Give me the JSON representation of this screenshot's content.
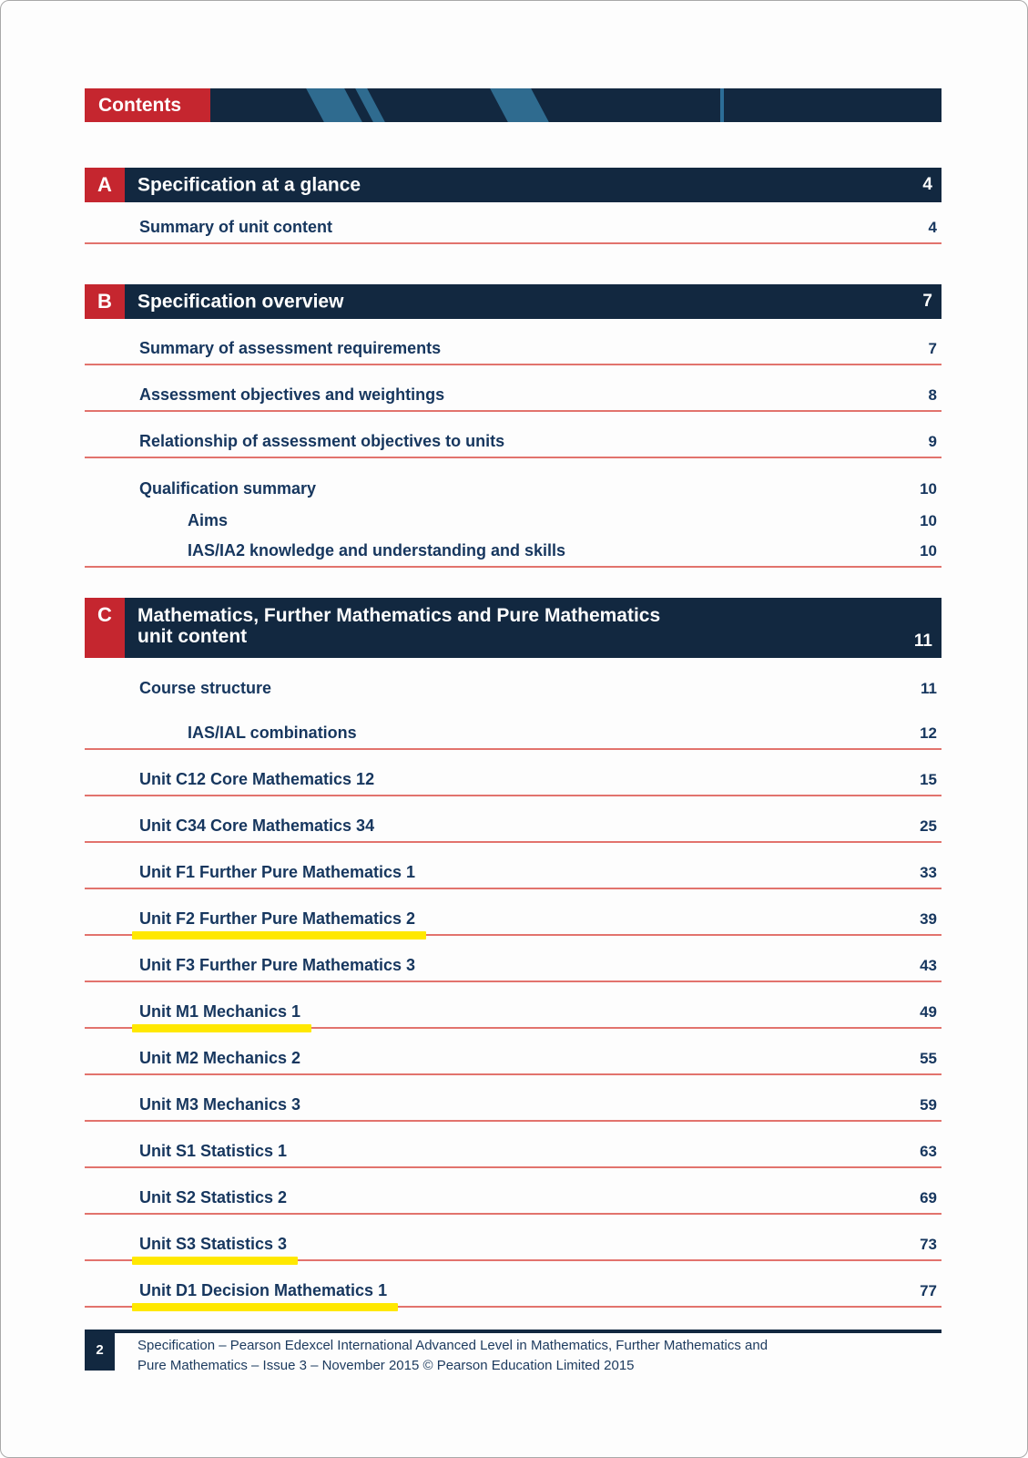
{
  "header": {
    "label": "Contents"
  },
  "sections": [
    {
      "letter": "A",
      "title": "Specification at a glance",
      "page": "4",
      "entries": [
        {
          "label": "Summary of unit content",
          "page": "4",
          "level": 1,
          "underline": true,
          "highlight": false
        }
      ]
    },
    {
      "letter": "B",
      "title": "Specification overview",
      "page": "7",
      "entries": [
        {
          "label": "Summary of assessment requirements",
          "page": "7",
          "level": 1,
          "underline": true,
          "highlight": false
        },
        {
          "label": "Assessment objectives and weightings",
          "page": "8",
          "level": 1,
          "underline": true,
          "highlight": false
        },
        {
          "label": "Relationship of assessment objectives to units",
          "page": "9",
          "level": 1,
          "underline": true,
          "highlight": false
        },
        {
          "label": "Qualification summary",
          "page": "10",
          "level": 1,
          "underline": false,
          "highlight": false
        },
        {
          "label": "Aims",
          "page": "10",
          "level": 2,
          "underline": false,
          "highlight": false
        },
        {
          "label": "IAS/IA2 knowledge and understanding and skills",
          "page": "10",
          "level": 2,
          "underline": true,
          "highlight": false
        }
      ]
    },
    {
      "letter": "C",
      "title": "Mathematics, Further Mathematics and Pure Mathematics",
      "title_line2": "unit content",
      "page": "11",
      "entries": [
        {
          "label": "Course structure",
          "page": "11",
          "level": 1,
          "underline": false,
          "highlight": false
        },
        {
          "label": "IAS/IAL combinations",
          "page": "12",
          "level": 2,
          "underline": true,
          "highlight": false
        },
        {
          "label": "Unit C12 Core Mathematics 12",
          "page": "15",
          "level": 1,
          "underline": true,
          "highlight": false
        },
        {
          "label": "Unit C34 Core Mathematics 34",
          "page": "25",
          "level": 1,
          "underline": true,
          "highlight": false
        },
        {
          "label": "Unit F1 Further Pure Mathematics 1",
          "page": "33",
          "level": 1,
          "underline": true,
          "highlight": false
        },
        {
          "label": "Unit F2 Further Pure Mathematics 2",
          "page": "39",
          "level": 1,
          "underline": true,
          "highlight": true
        },
        {
          "label": "Unit F3 Further Pure Mathematics 3",
          "page": "43",
          "level": 1,
          "underline": true,
          "highlight": false
        },
        {
          "label": "Unit M1 Mechanics 1",
          "page": "49",
          "level": 1,
          "underline": true,
          "highlight": true
        },
        {
          "label": "Unit M2 Mechanics 2",
          "page": "55",
          "level": 1,
          "underline": true,
          "highlight": false
        },
        {
          "label": "Unit M3 Mechanics 3",
          "page": "59",
          "level": 1,
          "underline": true,
          "highlight": false
        },
        {
          "label": "Unit S1 Statistics 1",
          "page": "63",
          "level": 1,
          "underline": true,
          "highlight": false
        },
        {
          "label": "Unit S2 Statistics 2",
          "page": "69",
          "level": 1,
          "underline": true,
          "highlight": false
        },
        {
          "label": "Unit S3 Statistics 3",
          "page": "73",
          "level": 1,
          "underline": true,
          "highlight": true
        },
        {
          "label": "Unit D1 Decision Mathematics 1",
          "page": "77",
          "level": 1,
          "underline": true,
          "highlight": true
        }
      ]
    }
  ],
  "footer": {
    "page_number": "2",
    "text_line1": "Specification – Pearson Edexcel International Advanced Level in Mathematics, Further Mathematics and",
    "text_line2": "Pure Mathematics – Issue 3 – November 2015 © Pearson Education Limited 2015"
  },
  "colors": {
    "navy": "#122840",
    "red": "#c5262f",
    "stripe_blue": "#2f6b8f",
    "underline_red": "#e2736d",
    "highlight_yellow": "#ffe800",
    "text_navy": "#16365e"
  }
}
